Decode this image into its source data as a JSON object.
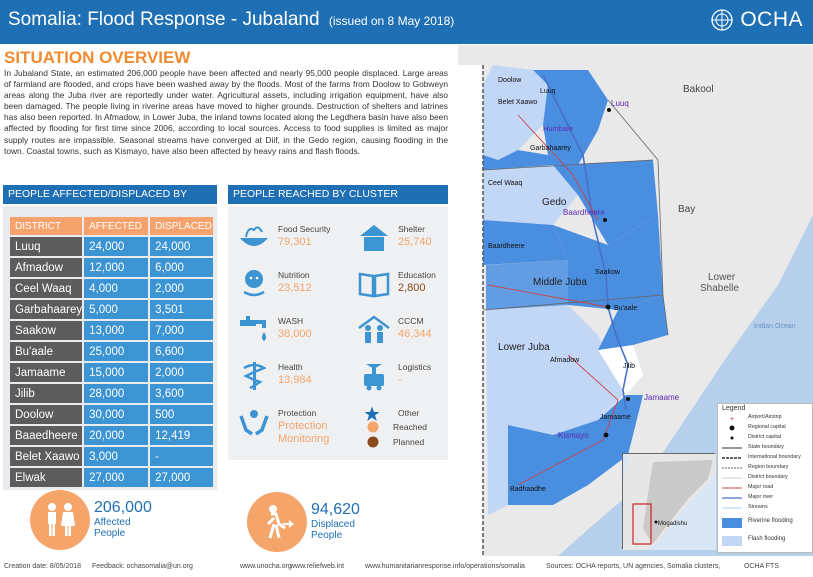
{
  "header": {
    "title": "Somalia: Flood Response - Jubaland",
    "issued": "(issued on 8 May 2018)",
    "logo": "OCHA"
  },
  "overview": {
    "title": "SITUATION OVERVIEW",
    "text": "In Jubaland State, an estimated 206,000 people have been affected and nearly 95,000 people displaced. Large areas of farmland are flooded, and crops have been washed away by the floods. Most of the farms from Doolow to Gobweyn areas along the Juba river are reportedly under water. Agricultural assets, including irrigation equipment, have also been damaged. The people living in riverine areas have moved to higher grounds. Destruction of shelters and latrines has also been reported. In Afmadow, in Lower Juba, the inland towns located along the Legdhera basin have also been affected by flooding for first time since 2006, according to local sources. Access to food supplies is limited as major supply routes are impassible. Seasonal streams have converged at Diif, in the Gedo region, causing flooding in the town. Coastal towns, such as Kismayo, have also been affected by heavy rains and flash floods."
  },
  "district_section": {
    "title": "PEOPLE AFFECTED/DISPLACED BY DISTRICT",
    "columns": [
      "DISTRICT",
      "AFFECTED",
      "DISPLACED"
    ],
    "rows": [
      [
        "Luuq",
        "24,000",
        "24,000"
      ],
      [
        "Afmadow",
        "12,000",
        "6,000"
      ],
      [
        "Ceel Waaq",
        "4,000",
        "2,000"
      ],
      [
        "Garbahaarey",
        "5,000",
        "3,501"
      ],
      [
        "Saakow",
        "13,000",
        "7,000"
      ],
      [
        "Bu'aale",
        "25,000",
        "6,600"
      ],
      [
        "Jamaame",
        "15,000",
        "2,000"
      ],
      [
        "Jilib",
        "28,000",
        "3,600"
      ],
      [
        "Doolow",
        "30,000",
        "500"
      ],
      [
        "Baaedheere",
        "20,000",
        "12,419"
      ],
      [
        "Belet Xaawo",
        "3,000",
        "-"
      ],
      [
        "Elwak",
        "27,000",
        "27,000"
      ]
    ]
  },
  "cluster_section": {
    "title": "PEOPLE REACHED BY CLUSTER",
    "clusters": [
      {
        "name": "Food Security",
        "value": "79,301",
        "icon": "food-security-icon"
      },
      {
        "name": "Shelter",
        "value": "25,740",
        "icon": "shelter-icon"
      },
      {
        "name": "Nutrition",
        "value": "23,512",
        "icon": "nutrition-icon"
      },
      {
        "name": "Education",
        "value": "2,800",
        "icon": "education-icon"
      },
      {
        "name": "WASH",
        "value": "38,000",
        "icon": "wash-icon"
      },
      {
        "name": "CCCM",
        "value": "46,344",
        "icon": "cccm-icon"
      },
      {
        "name": "Health",
        "value": "13,984",
        "icon": "health-icon"
      },
      {
        "name": "Logistics",
        "value": "-",
        "icon": "logistics-icon"
      },
      {
        "name": "Protection",
        "value": "Protection Monitoring",
        "icon": "protection-icon"
      },
      {
        "name": "Other",
        "value": "",
        "icon": "star-icon"
      }
    ],
    "legend": {
      "reached": "Reached",
      "planned": "Planned"
    },
    "colors": {
      "reached": "#f5a46a",
      "planned": "#8a4a1e"
    }
  },
  "stats": {
    "affected_number": "206,000",
    "affected_label": "Affected People",
    "displaced_number": "94,620",
    "displaced_label": "Displaced People"
  },
  "footer": {
    "creation": "Creation date: 8/05/2018",
    "feedback": "Feedback: ochasomalia@un.org",
    "site1": "www.unocha.org",
    "site2": "www.reliefweb.int",
    "site3": "www.humanitarianresponse.info/operations/somalia",
    "sources": "Sources: OCHA reports, UN agencies,  Somalia clusters,",
    "fts": "OCHA FTS"
  },
  "map": {
    "regions": [
      "Gedo",
      "Middle Juba",
      "Lower Juba",
      "Bakool",
      "Bay",
      "Lower Shabelle"
    ],
    "places": [
      "Doolow",
      "Luuq",
      "Belet Xaawo",
      "Luuq",
      "Humbale",
      "Garbahaarey",
      "Ceel Waaq",
      "Baardheere",
      "Baardheere",
      "Saakow",
      "Bu'aale",
      "Afmadow",
      "Jilib",
      "Jamaame",
      "Jamaame",
      "Kismayo",
      "Badhaadhe",
      "Mogadishu"
    ],
    "ocean": "Indian Ocean",
    "colors": {
      "riverine": "#4a8ee0",
      "flash": "#c2d6f5",
      "land": "#e9e9e9",
      "sea": "#b6d0ec"
    }
  },
  "legend": {
    "title": "Legend",
    "items": [
      "Airport/Airstrip",
      "Regional capital",
      "District capital",
      "State boundary",
      "International boundary",
      "Region boundary",
      "District boundary",
      "Major road",
      "Major river",
      "Streams",
      "Riverine flooding",
      "Flash flooding"
    ]
  }
}
